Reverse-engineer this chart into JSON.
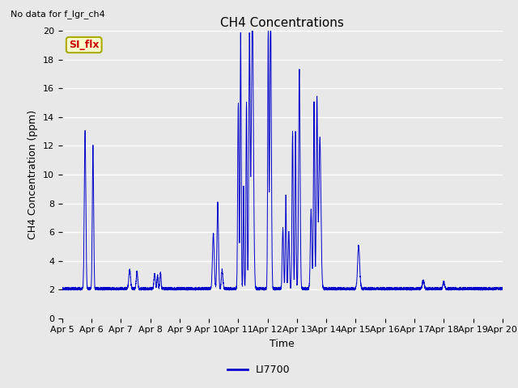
{
  "title": "CH4 Concentrations",
  "top_left_text": "No data for f_lgr_ch4",
  "xlabel": "Time",
  "ylabel": "CH4 Concentration (ppm)",
  "ylim": [
    0,
    20
  ],
  "yticks": [
    0,
    2,
    4,
    6,
    8,
    10,
    12,
    14,
    16,
    18,
    20
  ],
  "x_tick_labels": [
    "Apr 5",
    "Apr 6",
    "Apr 7",
    "Apr 8",
    "Apr 9",
    "Apr 10",
    "Apr 11",
    "Apr 12",
    "Apr 13",
    "Apr 14",
    "Apr 15",
    "Apr 16",
    "Apr 17",
    "Apr 18",
    "Apr 19",
    "Apr 20"
  ],
  "line_color": "#0000cc",
  "legend_label": "LI7700",
  "legend_line_color": "#0000cc",
  "annotation_box_text": "SI_flx",
  "annotation_box_facecolor": "#ffffcc",
  "annotation_box_edgecolor": "#aaaa00",
  "annotation_text_color": "#cc0000",
  "background_color": "#e8e8e8",
  "plot_bg_color": "#e8e8e8",
  "grid_color": "#ffffff",
  "title_fontsize": 11,
  "label_fontsize": 9,
  "tick_fontsize": 8
}
